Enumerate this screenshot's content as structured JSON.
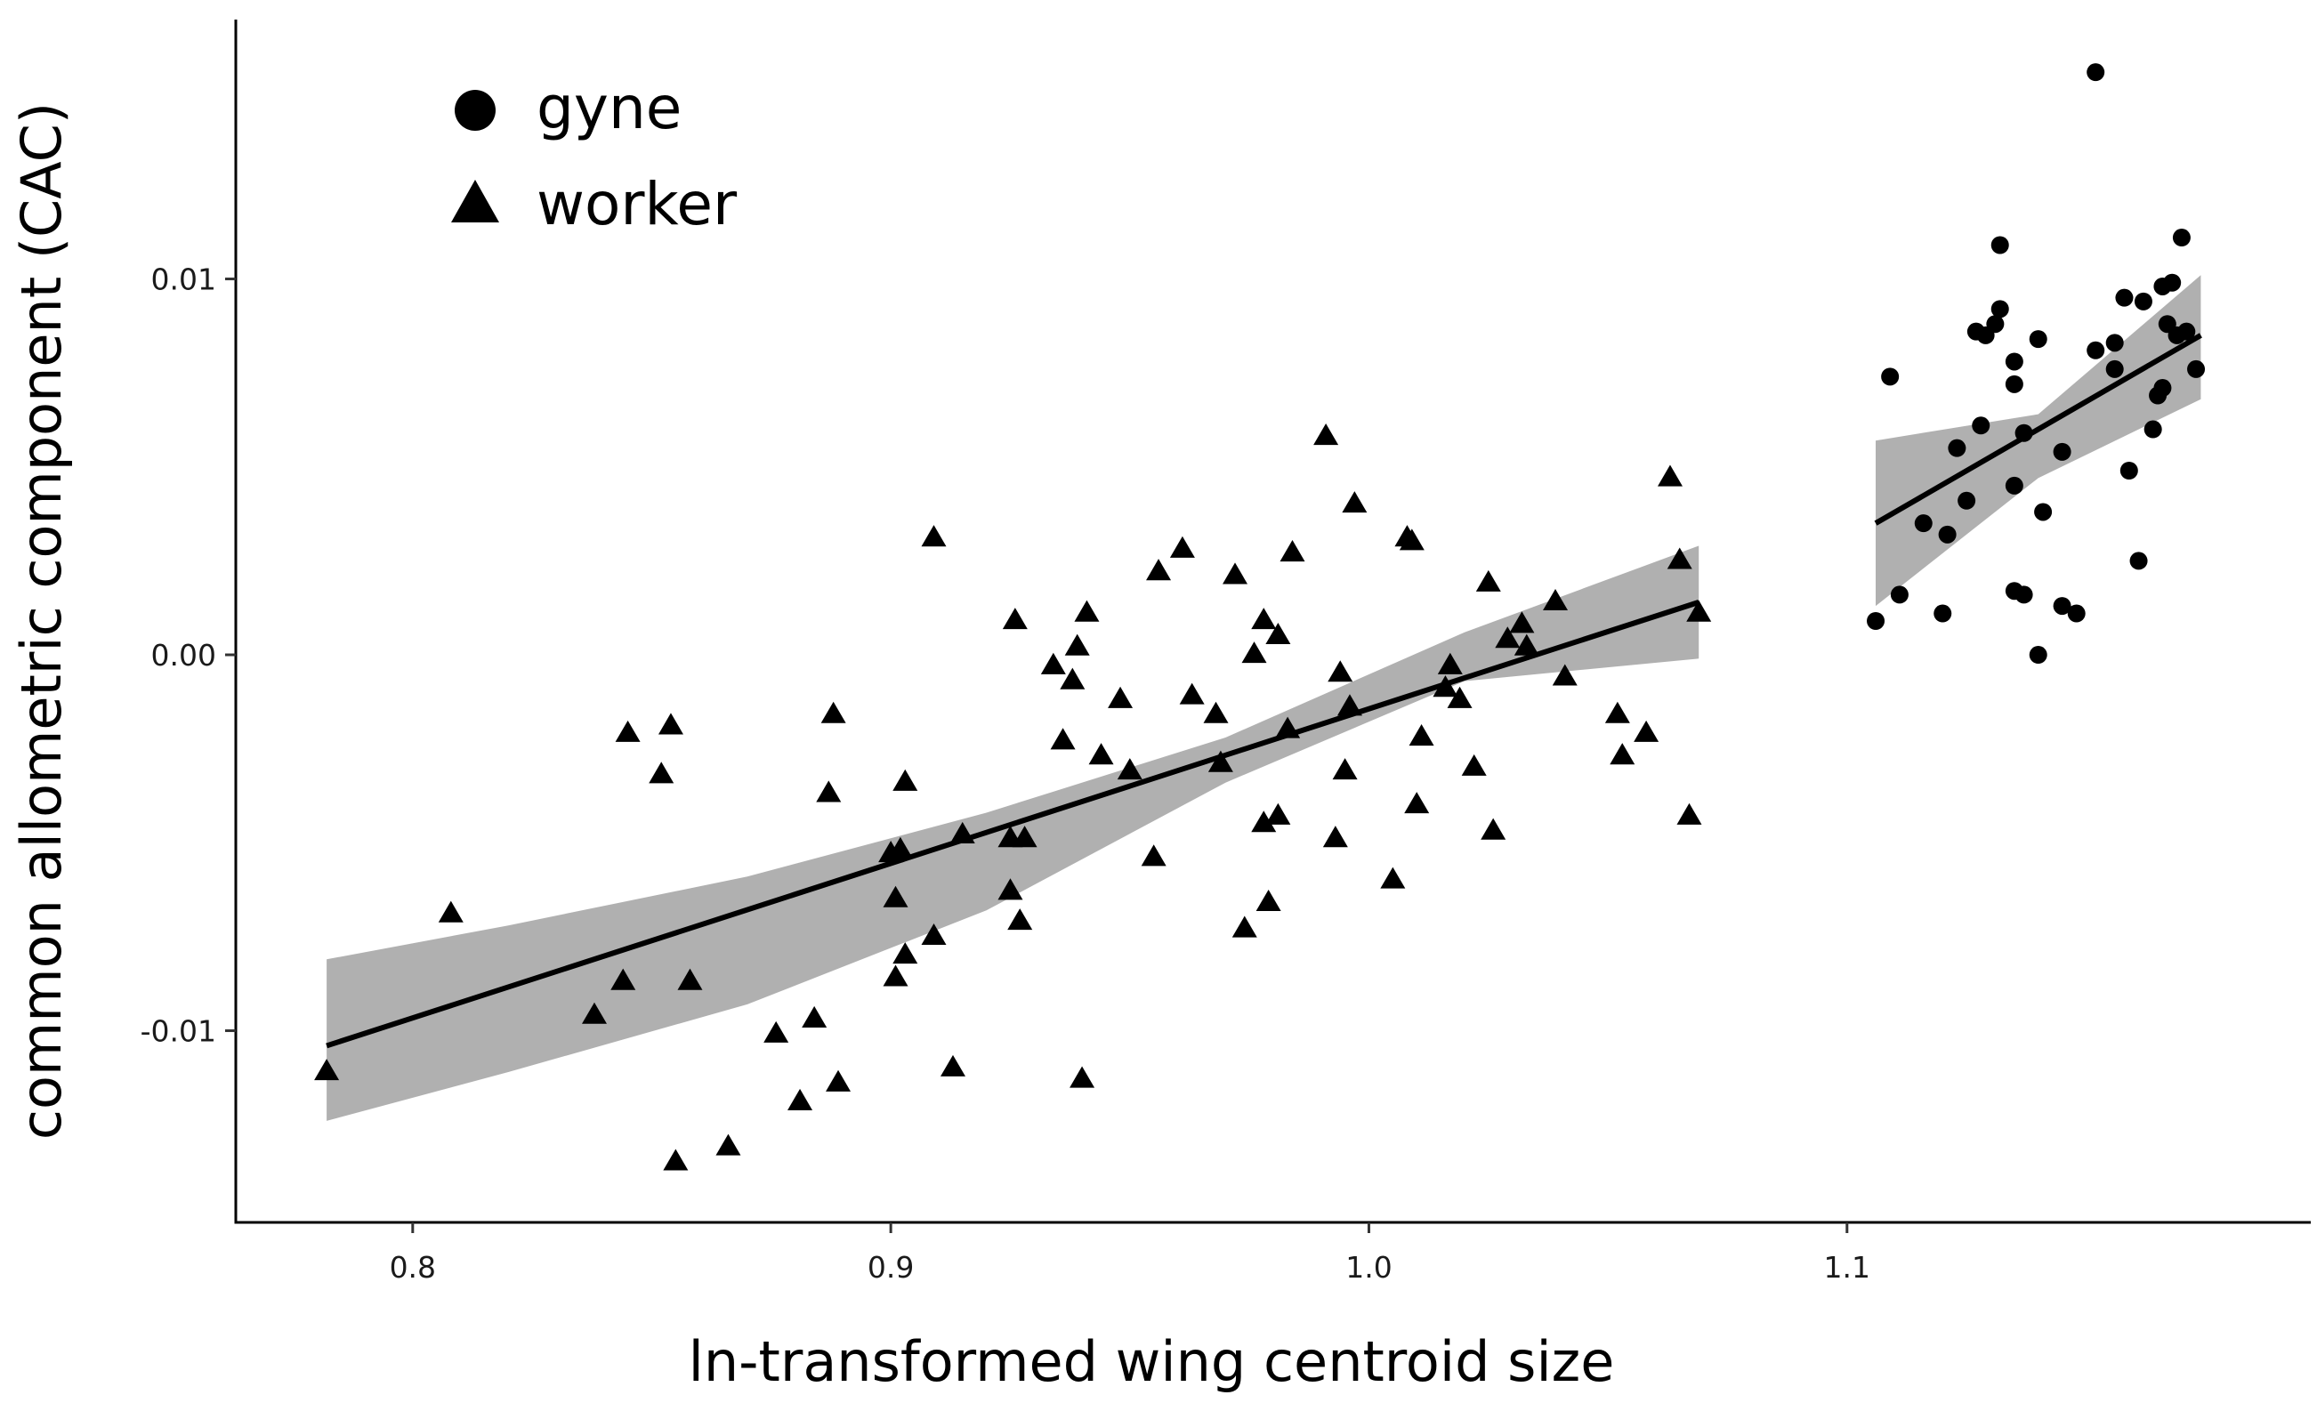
{
  "chart_data": {
    "type": "scatter",
    "xlabel": "ln-transformed wing centroid size",
    "ylabel": "common allometric component (CAC)",
    "xlim": [
      0.763,
      1.197
    ],
    "ylim": [
      -0.0151,
      0.0169
    ],
    "x_ticks": [
      0.8,
      0.9,
      1.0,
      1.1
    ],
    "x_tick_labels": [
      "0.8",
      "0.9",
      "1.0",
      "1.1"
    ],
    "y_ticks": [
      -0.01,
      0.0,
      0.01
    ],
    "y_tick_labels": [
      "-0.01",
      "0.00",
      "0.01"
    ],
    "grid": false,
    "legend_position": "top-left",
    "colors": {
      "points": "#000000",
      "fit_line": "#000000",
      "confidence_band": "#b0b0b0"
    },
    "series": [
      {
        "name": "gyne",
        "marker": "circle",
        "points": [
          [
            1.106,
            0.0009
          ],
          [
            1.109,
            0.0074
          ],
          [
            1.111,
            0.0016
          ],
          [
            1.116,
            0.0035
          ],
          [
            1.12,
            0.0011
          ],
          [
            1.121,
            0.0032
          ],
          [
            1.123,
            0.0055
          ],
          [
            1.125,
            0.0041
          ],
          [
            1.127,
            0.0086
          ],
          [
            1.128,
            0.0061
          ],
          [
            1.129,
            0.0085
          ],
          [
            1.131,
            0.0088
          ],
          [
            1.132,
            0.0109
          ],
          [
            1.132,
            0.0092
          ],
          [
            1.135,
            0.0078
          ],
          [
            1.135,
            0.0072
          ],
          [
            1.135,
            0.0045
          ],
          [
            1.135,
            0.0017
          ],
          [
            1.137,
            0.0016
          ],
          [
            1.137,
            0.0059
          ],
          [
            1.14,
            0.0084
          ],
          [
            1.14,
            0.0
          ],
          [
            1.141,
            0.0038
          ],
          [
            1.145,
            0.0054
          ],
          [
            1.145,
            0.0013
          ],
          [
            1.148,
            0.0011
          ],
          [
            1.152,
            0.0155
          ],
          [
            1.152,
            0.0081
          ],
          [
            1.156,
            0.0083
          ],
          [
            1.156,
            0.0076
          ],
          [
            1.158,
            0.0095
          ],
          [
            1.159,
            0.0049
          ],
          [
            1.161,
            0.0025
          ],
          [
            1.162,
            0.0094
          ],
          [
            1.164,
            0.006
          ],
          [
            1.165,
            0.0069
          ],
          [
            1.166,
            0.0071
          ],
          [
            1.166,
            0.0098
          ],
          [
            1.167,
            0.0088
          ],
          [
            1.168,
            0.0099
          ],
          [
            1.169,
            0.0085
          ],
          [
            1.17,
            0.0111
          ],
          [
            1.171,
            0.0086
          ],
          [
            1.173,
            0.0076
          ]
        ],
        "fit": {
          "x": [
            1.106,
            1.174
          ],
          "y": [
            0.0035,
            0.0085
          ]
        },
        "confidence_band": {
          "x": [
            1.106,
            1.14,
            1.174
          ],
          "lower": [
            0.0013,
            0.0047,
            0.0068
          ],
          "upper": [
            0.0057,
            0.0064,
            0.0101
          ]
        }
      },
      {
        "name": "worker",
        "marker": "triangle",
        "points": [
          [
            0.782,
            -0.0111
          ],
          [
            0.808,
            -0.0069
          ],
          [
            0.838,
            -0.0096
          ],
          [
            0.844,
            -0.0087
          ],
          [
            0.845,
            -0.0021
          ],
          [
            0.852,
            -0.0032
          ],
          [
            0.854,
            -0.0019
          ],
          [
            0.855,
            -0.0135
          ],
          [
            0.858,
            -0.0087
          ],
          [
            0.866,
            -0.0131
          ],
          [
            0.876,
            -0.0101
          ],
          [
            0.881,
            -0.0119
          ],
          [
            0.884,
            -0.0097
          ],
          [
            0.887,
            -0.0037
          ],
          [
            0.888,
            -0.0016
          ],
          [
            0.889,
            -0.0114
          ],
          [
            0.9,
            -0.0053
          ],
          [
            0.901,
            -0.0086
          ],
          [
            0.901,
            -0.0065
          ],
          [
            0.902,
            -0.0052
          ],
          [
            0.903,
            -0.0034
          ],
          [
            0.903,
            -0.008
          ],
          [
            0.909,
            0.0031
          ],
          [
            0.909,
            -0.0075
          ],
          [
            0.913,
            -0.011
          ],
          [
            0.915,
            -0.0048
          ],
          [
            0.925,
            -0.0049
          ],
          [
            0.925,
            -0.0063
          ],
          [
            0.926,
            0.0009
          ],
          [
            0.927,
            -0.0071
          ],
          [
            0.928,
            -0.0049
          ],
          [
            0.934,
            -0.0003
          ],
          [
            0.936,
            -0.0023
          ],
          [
            0.938,
            -0.0007
          ],
          [
            0.939,
            0.0002
          ],
          [
            0.94,
            -0.0113
          ],
          [
            0.941,
            0.0011
          ],
          [
            0.944,
            -0.0027
          ],
          [
            0.948,
            -0.0012
          ],
          [
            0.95,
            -0.0031
          ],
          [
            0.955,
            -0.0054
          ],
          [
            0.956,
            0.0022
          ],
          [
            0.961,
            0.0028
          ],
          [
            0.963,
            -0.0011
          ],
          [
            0.968,
            -0.0016
          ],
          [
            0.969,
            -0.0029
          ],
          [
            0.972,
            0.0021
          ],
          [
            0.974,
            -0.0073
          ],
          [
            0.976,
            0.0
          ],
          [
            0.978,
            -0.0045
          ],
          [
            0.978,
            0.0009
          ],
          [
            0.979,
            -0.0066
          ],
          [
            0.981,
            0.0005
          ],
          [
            0.981,
            -0.0043
          ],
          [
            0.983,
            -0.002
          ],
          [
            0.984,
            0.0027
          ],
          [
            0.991,
            0.0058
          ],
          [
            0.993,
            -0.0049
          ],
          [
            0.994,
            -0.0005
          ],
          [
            0.995,
            -0.0031
          ],
          [
            0.996,
            -0.0014
          ],
          [
            0.997,
            0.004
          ],
          [
            1.005,
            -0.006
          ],
          [
            1.008,
            0.0031
          ],
          [
            1.009,
            0.003
          ],
          [
            1.01,
            -0.004
          ],
          [
            1.011,
            -0.0022
          ],
          [
            1.016,
            -0.0009
          ],
          [
            1.017,
            -0.0003
          ],
          [
            1.019,
            -0.0012
          ],
          [
            1.022,
            -0.003
          ],
          [
            1.025,
            0.0019
          ],
          [
            1.026,
            -0.0047
          ],
          [
            1.029,
            0.0004
          ],
          [
            1.032,
            0.0008
          ],
          [
            1.033,
            0.0002
          ],
          [
            1.039,
            0.0014
          ],
          [
            1.041,
            -0.0006
          ],
          [
            1.052,
            -0.0016
          ],
          [
            1.053,
            -0.0027
          ],
          [
            1.058,
            -0.0021
          ],
          [
            1.063,
            0.0047
          ],
          [
            1.065,
            0.0025
          ],
          [
            1.067,
            -0.0043
          ],
          [
            1.069,
            0.0011
          ]
        ],
        "fit": {
          "x": [
            0.782,
            1.069
          ],
          "y": [
            -0.0104,
            0.0014
          ]
        },
        "confidence_band": {
          "x": [
            0.782,
            0.82,
            0.87,
            0.92,
            0.97,
            1.02,
            1.069
          ],
          "lower": [
            -0.0124,
            -0.0111,
            -0.0093,
            -0.0068,
            -0.0034,
            -0.0007,
            -0.0001
          ],
          "upper": [
            -0.0081,
            -0.0072,
            -0.0059,
            -0.0042,
            -0.0022,
            0.0006,
            0.0029
          ]
        }
      }
    ]
  }
}
